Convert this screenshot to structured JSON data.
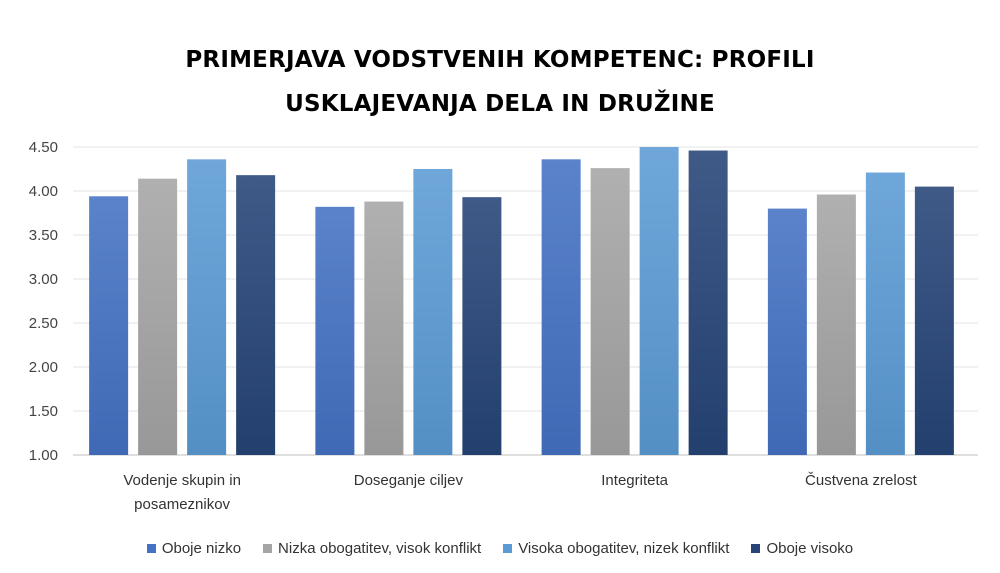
{
  "chart_data": {
    "type": "bar",
    "title_lines": [
      "PRIMERJAVA VODSTVENIH KOMPETENC: PROFILI",
      "USKLAJEVANJA DELA IN DRUŽINE"
    ],
    "categories": [
      [
        "Vodenje skupin in",
        "posameznikov"
      ],
      [
        "Doseganje ciljev"
      ],
      [
        "Integriteta"
      ],
      [
        "Čustvena zrelost"
      ]
    ],
    "series": [
      {
        "name": "Oboje nizko",
        "values": [
          3.94,
          3.82,
          4.36,
          3.8
        ],
        "color": "#4472c4"
      },
      {
        "name": "Nizka obogatitev, visok konflikt",
        "values": [
          4.14,
          3.88,
          4.26,
          3.96
        ],
        "color": "#a5a5a5"
      },
      {
        "name": "Visoka obogatitev, nizek konflikt",
        "values": [
          4.36,
          4.25,
          4.5,
          4.21
        ],
        "color": "#5b9bd5"
      },
      {
        "name": "Oboje visoko",
        "values": [
          4.18,
          3.93,
          4.46,
          4.05
        ],
        "color": "#264478"
      }
    ],
    "ylim": [
      1.0,
      4.5
    ],
    "yticks": [
      "1.00",
      "1.50",
      "2.00",
      "2.50",
      "3.00",
      "3.50",
      "4.00",
      "4.50"
    ],
    "grid": true,
    "legend": "bottom"
  }
}
